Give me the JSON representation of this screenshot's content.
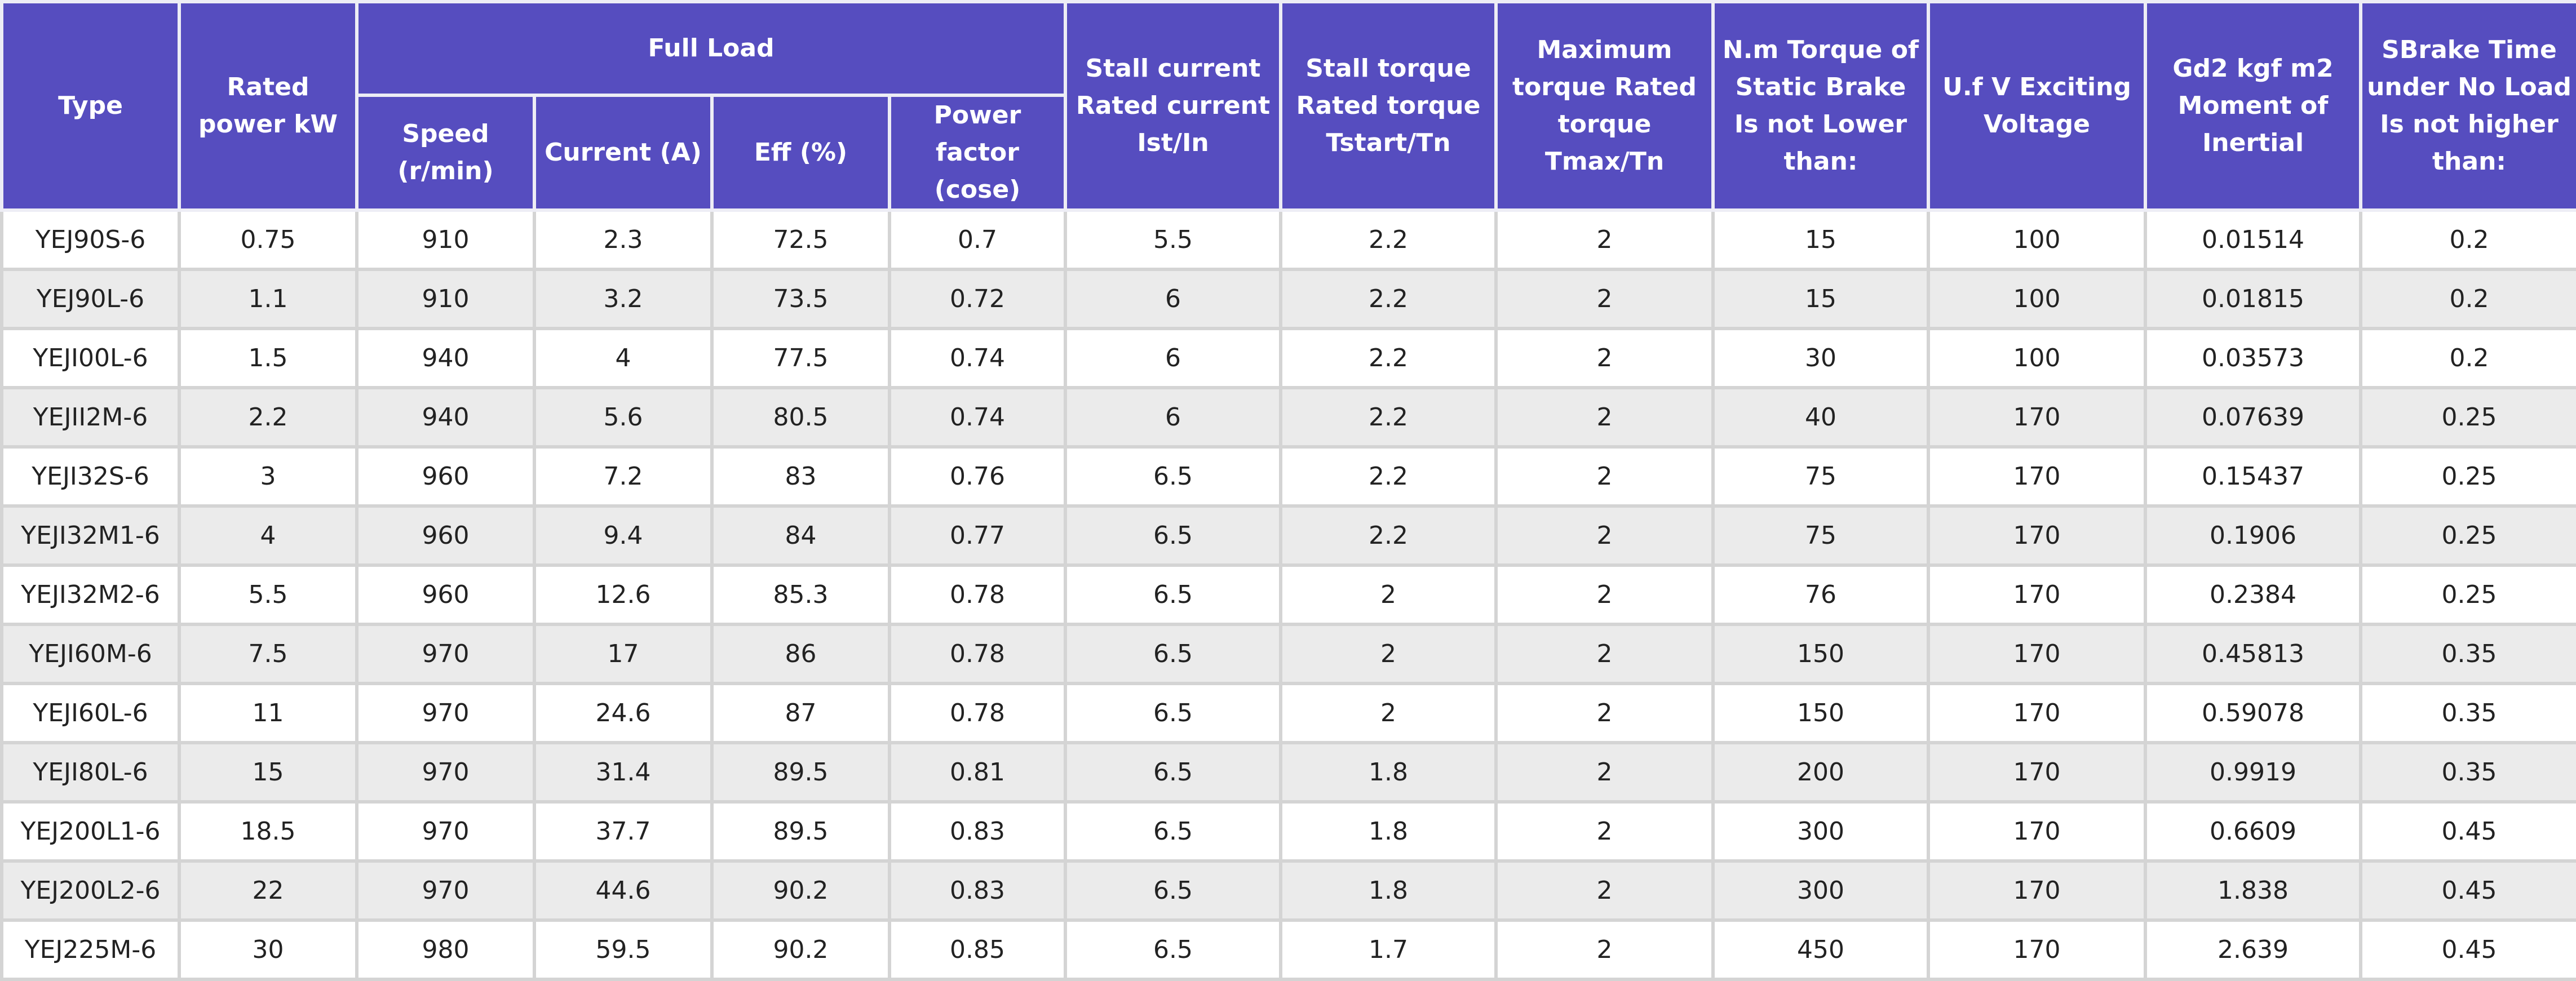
{
  "header": {
    "type": "Type",
    "rated_power": "Rated power kW",
    "full_load": "Full Load",
    "speed": "Speed (r/min)",
    "current": "Current (A)",
    "eff": "Eff (%)",
    "power_factor": "Power factor (cose)",
    "stall_current": "Stall current Rated current Ist/In",
    "stall_torque": "Stall torque Rated torque Tstart/Tn",
    "max_torque": "Maximum torque Rated torque Tmax/Tn",
    "static_brake": "N.m Torque of Static Brake Is not Lower than:",
    "voltage": "U.f V Exciting Voltage",
    "inertia": "Gd2 kgf m2 Moment of Inertial",
    "brake_time": "SBrake Time under No Load Is not higher than:"
  },
  "table": {
    "rows": [
      [
        "YEJ90S-6",
        0.75,
        910,
        2.3,
        72.5,
        0.7,
        5.5,
        2.2,
        2,
        15,
        100,
        0.01514,
        0.2
      ],
      [
        "YEJ90L-6",
        1.1,
        910,
        3.2,
        73.5,
        0.72,
        6,
        2.2,
        2,
        15,
        100,
        0.01815,
        0.2
      ],
      [
        "YEJI00L-6",
        1.5,
        940,
        4,
        77.5,
        0.74,
        6,
        2.2,
        2,
        30,
        100,
        0.03573,
        0.2
      ],
      [
        "YEJII2M-6",
        2.2,
        940,
        5.6,
        80.5,
        0.74,
        6,
        2.2,
        2,
        40,
        170,
        0.07639,
        0.25
      ],
      [
        "YEJI32S-6",
        3,
        960,
        7.2,
        83,
        0.76,
        6.5,
        2.2,
        2,
        75,
        170,
        0.15437,
        0.25
      ],
      [
        "YEJI32M1-6",
        4,
        960,
        9.4,
        84,
        0.77,
        6.5,
        2.2,
        2,
        75,
        170,
        0.1906,
        0.25
      ],
      [
        "YEJI32M2-6",
        5.5,
        960,
        12.6,
        85.3,
        0.78,
        6.5,
        2,
        2,
        76,
        170,
        0.2384,
        0.25
      ],
      [
        "YEJI60M-6",
        7.5,
        970,
        17,
        86,
        0.78,
        6.5,
        2,
        2,
        150,
        170,
        0.45813,
        0.35
      ],
      [
        "YEJI60L-6",
        11,
        970,
        24.6,
        87,
        0.78,
        6.5,
        2,
        2,
        150,
        170,
        0.59078,
        0.35
      ],
      [
        "YEJI80L-6",
        15,
        970,
        31.4,
        89.5,
        0.81,
        6.5,
        1.8,
        2,
        200,
        170,
        0.9919,
        0.35
      ],
      [
        "YEJ200L1-6",
        18.5,
        970,
        37.7,
        89.5,
        0.83,
        6.5,
        1.8,
        2,
        300,
        170,
        0.6609,
        0.45
      ],
      [
        "YEJ200L2-6",
        22,
        970,
        44.6,
        90.2,
        0.83,
        6.5,
        1.8,
        2,
        300,
        170,
        1.838,
        0.45
      ],
      [
        "YEJ225M-6",
        30,
        980,
        59.5,
        90.2,
        0.85,
        6.5,
        1.7,
        2,
        450,
        170,
        2.639,
        0.45
      ]
    ]
  }
}
